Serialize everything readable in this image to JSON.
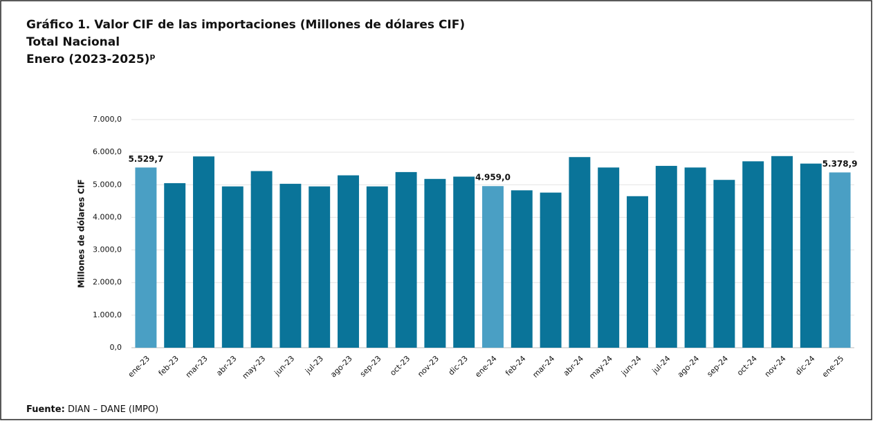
{
  "chart_data": {
    "type": "bar",
    "title": [
      "Gráfico 1. Valor CIF de las importaciones (Millones de dólares CIF)",
      "Total Nacional",
      "Enero (2023-2025)"
    ],
    "title_note": "p",
    "ylabel": "Millones de dólares CIF",
    "source_label": "Fuente:",
    "source": "DIAN – DANE (IMPO)",
    "categories": [
      "ene-23",
      "feb-23",
      "mar-23",
      "abr-23",
      "may-23",
      "jun-23",
      "jul-23",
      "ago-23",
      "sep-23",
      "oct-23",
      "nov-23",
      "dic-23",
      "ene-24",
      "feb-24",
      "mar-24",
      "abr-24",
      "may-24",
      "jun-24",
      "jul-24",
      "ago-24",
      "sep-24",
      "oct-24",
      "nov-24",
      "dic-24",
      "ene-25"
    ],
    "values": [
      5529.7,
      5050,
      5870,
      4950,
      5420,
      5030,
      4950,
      5290,
      4950,
      5390,
      5180,
      5250,
      4959.0,
      4830,
      4760,
      5850,
      5530,
      4650,
      5580,
      5530,
      5150,
      5720,
      5880,
      5650,
      5378.9
    ],
    "value_labels": [
      "5.529,7",
      null,
      null,
      null,
      null,
      null,
      null,
      null,
      null,
      null,
      null,
      null,
      "4.959,0",
      null,
      null,
      null,
      null,
      null,
      null,
      null,
      null,
      null,
      null,
      null,
      "5.378,9"
    ],
    "colors": [
      "#4a9fc4",
      "#0a7499",
      "#0a7499",
      "#0a7499",
      "#0a7499",
      "#0a7499",
      "#0a7499",
      "#0a7499",
      "#0a7499",
      "#0a7499",
      "#0a7499",
      "#0a7499",
      "#4a9fc4",
      "#0a7499",
      "#0a7499",
      "#0a7499",
      "#0a7499",
      "#0a7499",
      "#0a7499",
      "#0a7499",
      "#0a7499",
      "#0a7499",
      "#0a7499",
      "#0a7499",
      "#4a9fc4"
    ],
    "ylim": [
      0,
      7000
    ],
    "yticks": [
      {
        "value": 0,
        "label": "0,0"
      },
      {
        "value": 1000,
        "label": "1.000,0"
      },
      {
        "value": 2000,
        "label": "2.000,0"
      },
      {
        "value": 3000,
        "label": "3.000,0"
      },
      {
        "value": 4000,
        "label": "4.000,0"
      },
      {
        "value": 5000,
        "label": "5.000,0"
      },
      {
        "value": 6000,
        "label": "6.000,0"
      },
      {
        "value": 7000,
        "label": "7.000,0"
      }
    ],
    "grid": true
  }
}
